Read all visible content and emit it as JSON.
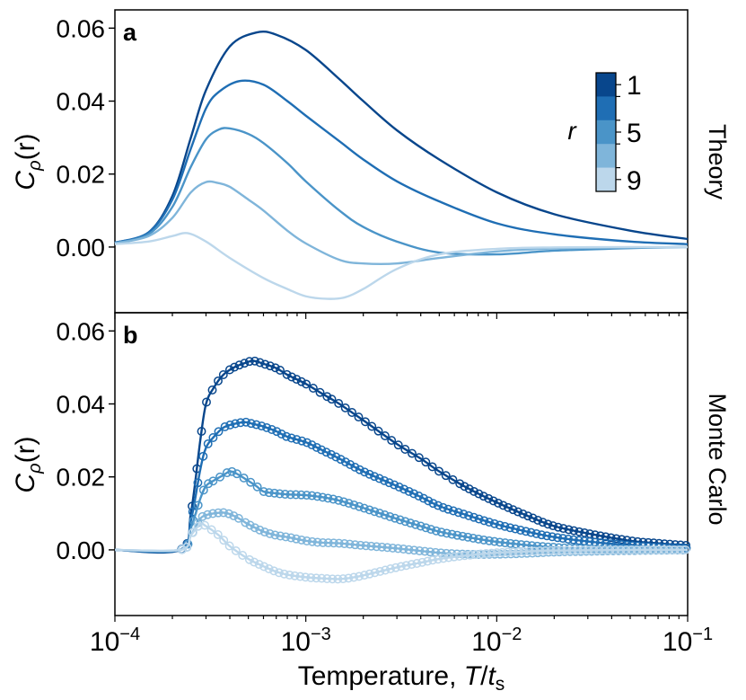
{
  "chart_data": [
    {
      "type": "line",
      "panel_label": "a",
      "side_label": "Theory",
      "ylabel_main": "C",
      "ylabel_sub": "ρ",
      "ylabel_arg": "(r)",
      "xscale": "log",
      "xlim": [
        0.0001,
        0.1
      ],
      "ylim": [
        -0.018,
        0.065
      ],
      "yticks": [
        0.0,
        0.02,
        0.04,
        0.06
      ],
      "ytick_labels": [
        "0.00",
        "0.02",
        "0.04",
        "0.06"
      ],
      "colorbar": {
        "label": "r",
        "tick_labels": [
          "1",
          "5",
          "9"
        ],
        "colors": [
          "#08468c",
          "#1f6eb4",
          "#4a94c8",
          "#7fb5da",
          "#bcd7eb"
        ]
      },
      "series": [
        {
          "name": "r=1",
          "color": "#08468c",
          "x": [
            0.0001,
            0.00015,
            0.0002,
            0.00025,
            0.0003,
            0.0004,
            0.00055,
            0.0007,
            0.001,
            0.0015,
            0.002,
            0.003,
            0.005,
            0.01,
            0.02,
            0.05,
            0.1
          ],
          "y": [
            0.0012,
            0.004,
            0.014,
            0.03,
            0.043,
            0.055,
            0.0588,
            0.0582,
            0.054,
            0.046,
            0.04,
            0.032,
            0.024,
            0.015,
            0.009,
            0.0045,
            0.0022
          ]
        },
        {
          "name": "r=3",
          "color": "#1f6eb4",
          "x": [
            0.0001,
            0.00015,
            0.0002,
            0.00025,
            0.0003,
            0.00035,
            0.00045,
            0.0006,
            0.0008,
            0.001,
            0.0015,
            0.002,
            0.003,
            0.005,
            0.01,
            0.02,
            0.05,
            0.1
          ],
          "y": [
            0.0012,
            0.004,
            0.013,
            0.027,
            0.038,
            0.0425,
            0.0455,
            0.0445,
            0.04,
            0.036,
            0.029,
            0.024,
            0.018,
            0.0125,
            0.0065,
            0.0035,
            0.0015,
            0.0008
          ]
        },
        {
          "name": "r=5",
          "color": "#4a94c8",
          "x": [
            0.0001,
            0.00015,
            0.0002,
            0.00025,
            0.0003,
            0.00035,
            0.0004,
            0.0005,
            0.0006,
            0.0008,
            0.001,
            0.0015,
            0.002,
            0.003,
            0.005,
            0.01,
            0.02,
            0.05,
            0.1
          ],
          "y": [
            0.0011,
            0.0035,
            0.011,
            0.022,
            0.0295,
            0.0322,
            0.0325,
            0.031,
            0.0285,
            0.023,
            0.018,
            0.01,
            0.0055,
            0.0015,
            -0.0015,
            -0.002,
            -0.001,
            -0.0003,
            0.0
          ]
        },
        {
          "name": "r=7",
          "color": "#7fb5da",
          "x": [
            0.0001,
            0.00015,
            0.0002,
            0.00025,
            0.0003,
            0.00035,
            0.0004,
            0.0005,
            0.0006,
            0.0008,
            0.001,
            0.0015,
            0.002,
            0.003,
            0.005,
            0.01,
            0.02,
            0.05,
            0.1
          ],
          "y": [
            0.001,
            0.003,
            0.008,
            0.015,
            0.0178,
            0.0175,
            0.0165,
            0.013,
            0.01,
            0.0045,
            0.001,
            -0.0035,
            -0.0045,
            -0.0045,
            -0.003,
            -0.0012,
            -0.0004,
            -0.0001,
            0.0
          ]
        },
        {
          "name": "r=9",
          "color": "#bcd7eb",
          "x": [
            0.0001,
            0.00015,
            0.0002,
            0.00024,
            0.0003,
            0.0004,
            0.0006,
            0.0008,
            0.001,
            0.0013,
            0.0016,
            0.002,
            0.003,
            0.005,
            0.01,
            0.02,
            0.05,
            0.1
          ],
          "y": [
            0.0008,
            0.0015,
            0.003,
            0.0038,
            0.0015,
            -0.003,
            -0.0085,
            -0.0115,
            -0.0135,
            -0.0142,
            -0.0138,
            -0.0115,
            -0.006,
            -0.002,
            -0.0005,
            -0.0001,
            0.0,
            0.0
          ]
        }
      ]
    },
    {
      "type": "scatter",
      "panel_label": "b",
      "side_label": "Monte Carlo",
      "ylabel_main": "C",
      "ylabel_sub": "ρ",
      "ylabel_arg": "(r)",
      "xlabel_main": "Temperature, ",
      "xlabel_T": "T",
      "xlabel_slash": "/",
      "xlabel_t": "t",
      "xlabel_sub": "s",
      "xscale": "log",
      "xlim": [
        0.0001,
        0.1
      ],
      "ylim": [
        -0.018,
        0.065
      ],
      "yticks": [
        0.0,
        0.02,
        0.04,
        0.06
      ],
      "ytick_labels": [
        "0.00",
        "0.02",
        "0.04",
        "0.06"
      ],
      "xtick_exponents": [
        "−4",
        "−3",
        "−2",
        "−1"
      ],
      "xtick_base": "10",
      "series": [
        {
          "name": "r=1",
          "color": "#08468c",
          "x": [
            0.0001,
            0.00022,
            0.00025,
            0.00028,
            0.0003,
            0.00033,
            0.00037,
            0.00042,
            0.00048,
            0.00053,
            0.0006,
            0.0007,
            0.0008,
            0.001,
            0.0012,
            0.0015,
            0.002,
            0.003,
            0.004,
            0.005,
            0.007,
            0.01,
            0.015,
            0.02,
            0.03,
            0.05,
            0.07,
            0.1
          ],
          "y": [
            0.0,
            0.0,
            0.01,
            0.03,
            0.04,
            0.0445,
            0.048,
            0.05,
            0.0512,
            0.0518,
            0.051,
            0.0498,
            0.048,
            0.0455,
            0.043,
            0.04,
            0.0355,
            0.029,
            0.025,
            0.0215,
            0.017,
            0.013,
            0.009,
            0.0065,
            0.0045,
            0.0025,
            0.0018,
            0.0012
          ]
        },
        {
          "name": "r=3",
          "color": "#1f6eb4",
          "x": [
            0.0001,
            0.00022,
            0.00025,
            0.00028,
            0.0003,
            0.00033,
            0.00037,
            0.00042,
            0.00048,
            0.00053,
            0.0006,
            0.0007,
            0.0008,
            0.001,
            0.0012,
            0.0015,
            0.002,
            0.003,
            0.004,
            0.005,
            0.007,
            0.01,
            0.015,
            0.02,
            0.03,
            0.05,
            0.07,
            0.1
          ],
          "y": [
            0.0,
            0.0,
            0.008,
            0.022,
            0.028,
            0.031,
            0.0335,
            0.0345,
            0.035,
            0.0345,
            0.0338,
            0.0325,
            0.031,
            0.0295,
            0.0275,
            0.025,
            0.0215,
            0.0175,
            0.0145,
            0.012,
            0.0095,
            0.007,
            0.0048,
            0.0035,
            0.0023,
            0.0012,
            0.0007,
            0.0005
          ]
        },
        {
          "name": "r=5",
          "color": "#4a94c8",
          "x": [
            0.0001,
            0.00022,
            0.00025,
            0.00028,
            0.0003,
            0.00033,
            0.00037,
            0.0004,
            0.00043,
            0.00048,
            0.00055,
            0.0006,
            0.0007,
            0.0008,
            0.001,
            0.0012,
            0.0015,
            0.002,
            0.003,
            0.004,
            0.005,
            0.007,
            0.01,
            0.015,
            0.02,
            0.03,
            0.05,
            0.1
          ],
          "y": [
            0.0,
            0.0,
            0.006,
            0.014,
            0.0175,
            0.019,
            0.0205,
            0.0215,
            0.021,
            0.0195,
            0.0175,
            0.016,
            0.0155,
            0.0152,
            0.015,
            0.0145,
            0.0135,
            0.0115,
            0.0085,
            0.0065,
            0.005,
            0.0035,
            0.0022,
            0.0012,
            0.0007,
            0.0003,
            0.0001,
            0.0
          ]
        },
        {
          "name": "r=7",
          "color": "#7fb5da",
          "x": [
            0.0001,
            0.00022,
            0.00025,
            0.00028,
            0.0003,
            0.00033,
            0.00037,
            0.0004,
            0.00045,
            0.0005,
            0.0006,
            0.0007,
            0.0008,
            0.001,
            0.0012,
            0.0015,
            0.002,
            0.003,
            0.005,
            0.007,
            0.01,
            0.015,
            0.02,
            0.03,
            0.05,
            0.1
          ],
          "y": [
            0.0,
            0.0,
            0.004,
            0.0085,
            0.0095,
            0.01,
            0.0102,
            0.0098,
            0.0085,
            0.007,
            0.005,
            0.004,
            0.0035,
            0.0025,
            0.002,
            0.0018,
            0.0012,
            0.0004,
            -0.0008,
            -0.0012,
            -0.0012,
            -0.0009,
            -0.0006,
            -0.0004,
            -0.0002,
            0.0
          ]
        },
        {
          "name": "r=9",
          "color": "#bcd7eb",
          "x": [
            0.0001,
            0.00022,
            0.00025,
            0.00028,
            0.0003,
            0.00035,
            0.0004,
            0.0005,
            0.0006,
            0.0007,
            0.0008,
            0.001,
            0.0012,
            0.0015,
            0.0018,
            0.002,
            0.0025,
            0.003,
            0.004,
            0.005,
            0.007,
            0.01,
            0.015,
            0.02,
            0.03,
            0.05,
            0.1
          ],
          "y": [
            0.0,
            0.0,
            0.004,
            0.007,
            0.0065,
            0.004,
            0.001,
            -0.0025,
            -0.0045,
            -0.006,
            -0.0068,
            -0.0075,
            -0.0078,
            -0.008,
            -0.0075,
            -0.007,
            -0.0058,
            -0.0048,
            -0.0035,
            -0.0025,
            -0.0015,
            -0.0008,
            -0.0004,
            -0.0002,
            -0.0001,
            0.0,
            0.0
          ]
        }
      ]
    }
  ]
}
